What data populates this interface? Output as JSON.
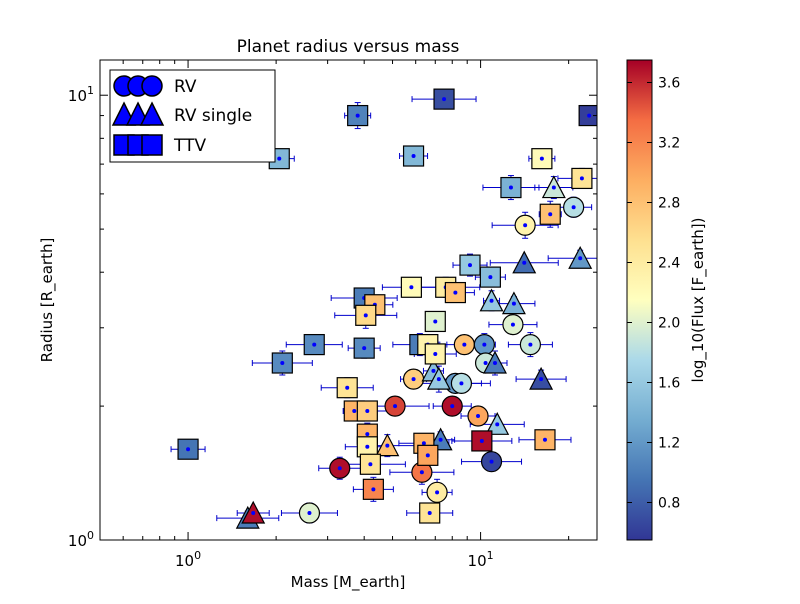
{
  "chart_data": {
    "type": "scatter",
    "title": "Planet radius versus mass",
    "xlabel": "Mass [M_earth]",
    "ylabel": "Radius [R_earth]",
    "x_scale": "log",
    "y_scale": "log",
    "xlim": [
      0.5,
      25
    ],
    "ylim": [
      1,
      12
    ],
    "x_ticks": [
      {
        "value": 1,
        "label": "10^0"
      },
      {
        "value": 10,
        "label": "10^1"
      }
    ],
    "y_ticks": [
      {
        "value": 1,
        "label": "10^0"
      },
      {
        "value": 10,
        "label": "10^1"
      }
    ],
    "colorbar": {
      "label": "log_10(Flux [F_earth])",
      "range": [
        0.55,
        3.75
      ],
      "ticks": [
        0.8,
        1.2,
        1.6,
        2.0,
        2.4,
        2.8,
        3.2,
        3.6
      ],
      "tick_labels": [
        "0.8",
        "1.2",
        "1.6",
        "2.0",
        "2.4",
        "2.8",
        "3.2",
        "3.6"
      ]
    },
    "legend": {
      "placement": "top-left",
      "entries": [
        {
          "label": "RV",
          "marker": "circle"
        },
        {
          "label": "RV single",
          "marker": "triangle"
        },
        {
          "label": "TTV",
          "marker": "square"
        }
      ]
    },
    "series": [
      {
        "name": "RV",
        "marker": "circle",
        "points": [
          {
            "x": 3.3,
            "y": 1.45,
            "flux": 3.7
          },
          {
            "x": 5.1,
            "y": 2.0,
            "flux": 3.5
          },
          {
            "x": 8.0,
            "y": 2.0,
            "flux": 3.7
          },
          {
            "x": 6.3,
            "y": 1.42,
            "flux": 3.3
          },
          {
            "x": 9.8,
            "y": 1.9,
            "flux": 3.0
          },
          {
            "x": 10.9,
            "y": 1.5,
            "flux": 0.65
          },
          {
            "x": 7.1,
            "y": 1.28,
            "flux": 2.4
          },
          {
            "x": 2.6,
            "y": 1.15,
            "flux": 2.0
          },
          {
            "x": 5.9,
            "y": 2.3,
            "flux": 2.7
          },
          {
            "x": 8.8,
            "y": 2.75,
            "flux": 2.8
          },
          {
            "x": 10.3,
            "y": 2.75,
            "flux": 1.2
          },
          {
            "x": 12.9,
            "y": 3.05,
            "flux": 2.0
          },
          {
            "x": 10.4,
            "y": 2.5,
            "flux": 1.9
          },
          {
            "x": 14.8,
            "y": 2.75,
            "flux": 1.9
          },
          {
            "x": 8.2,
            "y": 2.25,
            "flux": 1.2
          },
          {
            "x": 8.6,
            "y": 2.25,
            "flux": 1.8
          },
          {
            "x": 14.2,
            "y": 5.1,
            "flux": 2.3
          },
          {
            "x": 20.8,
            "y": 5.6,
            "flux": 1.8
          }
        ]
      },
      {
        "name": "RV single",
        "marker": "triangle",
        "points": [
          {
            "x": 1.6,
            "y": 1.12,
            "flux": 1.0
          },
          {
            "x": 1.67,
            "y": 1.15,
            "flux": 3.7
          },
          {
            "x": 4.8,
            "y": 1.63,
            "flux": 2.8
          },
          {
            "x": 7.3,
            "y": 1.68,
            "flux": 1.0
          },
          {
            "x": 11.4,
            "y": 1.82,
            "flux": 1.6
          },
          {
            "x": 11.2,
            "y": 2.5,
            "flux": 1.0
          },
          {
            "x": 16.1,
            "y": 2.3,
            "flux": 0.7
          },
          {
            "x": 6.9,
            "y": 2.4,
            "flux": 1.5
          },
          {
            "x": 7.2,
            "y": 2.3,
            "flux": 1.6
          },
          {
            "x": 10.9,
            "y": 3.45,
            "flux": 1.6
          },
          {
            "x": 13.0,
            "y": 3.4,
            "flux": 1.4
          },
          {
            "x": 14.1,
            "y": 4.2,
            "flux": 0.9
          },
          {
            "x": 17.8,
            "y": 6.2,
            "flux": 1.9
          },
          {
            "x": 21.9,
            "y": 4.3,
            "flux": 1.2
          }
        ]
      },
      {
        "name": "TTV",
        "marker": "square",
        "points": [
          {
            "x": 1.0,
            "y": 1.6,
            "flux": 0.95
          },
          {
            "x": 2.1,
            "y": 2.5,
            "flux": 1.1
          },
          {
            "x": 2.05,
            "y": 7.2,
            "flux": 1.45
          },
          {
            "x": 2.7,
            "y": 2.75,
            "flux": 1.1
          },
          {
            "x": 3.8,
            "y": 9.0,
            "flux": 1.05
          },
          {
            "x": 3.5,
            "y": 2.2,
            "flux": 2.5
          },
          {
            "x": 3.7,
            "y": 1.95,
            "flux": 2.9
          },
          {
            "x": 4.1,
            "y": 1.95,
            "flux": 2.7
          },
          {
            "x": 4.1,
            "y": 1.73,
            "flux": 2.9
          },
          {
            "x": 4.1,
            "y": 1.62,
            "flux": 2.3
          },
          {
            "x": 4.2,
            "y": 1.48,
            "flux": 2.5
          },
          {
            "x": 4.3,
            "y": 1.3,
            "flux": 3.2
          },
          {
            "x": 4.0,
            "y": 3.5,
            "flux": 1.0
          },
          {
            "x": 4.35,
            "y": 3.38,
            "flux": 2.8
          },
          {
            "x": 4.05,
            "y": 3.2,
            "flux": 2.6
          },
          {
            "x": 4.0,
            "y": 2.7,
            "flux": 1.1
          },
          {
            "x": 5.8,
            "y": 3.7,
            "flux": 2.2
          },
          {
            "x": 5.9,
            "y": 7.3,
            "flux": 1.45
          },
          {
            "x": 6.2,
            "y": 2.75,
            "flux": 1.0
          },
          {
            "x": 6.6,
            "y": 2.75,
            "flux": 2.3
          },
          {
            "x": 6.4,
            "y": 1.65,
            "flux": 2.9
          },
          {
            "x": 6.6,
            "y": 1.55,
            "flux": 3.0
          },
          {
            "x": 6.7,
            "y": 1.15,
            "flux": 2.5
          },
          {
            "x": 7.0,
            "y": 3.1,
            "flux": 2.0
          },
          {
            "x": 7.0,
            "y": 2.62,
            "flux": 2.3
          },
          {
            "x": 7.6,
            "y": 3.7,
            "flux": 2.4
          },
          {
            "x": 8.2,
            "y": 3.6,
            "flux": 2.8
          },
          {
            "x": 7.5,
            "y": 9.8,
            "flux": 0.7
          },
          {
            "x": 9.2,
            "y": 4.15,
            "flux": 1.6
          },
          {
            "x": 10.1,
            "y": 1.67,
            "flux": 3.7
          },
          {
            "x": 10.8,
            "y": 3.9,
            "flux": 1.5
          },
          {
            "x": 12.7,
            "y": 6.2,
            "flux": 1.4
          },
          {
            "x": 16.2,
            "y": 7.2,
            "flux": 2.2
          },
          {
            "x": 16.6,
            "y": 1.68,
            "flux": 2.9
          },
          {
            "x": 17.3,
            "y": 5.4,
            "flux": 2.8
          },
          {
            "x": 22.2,
            "y": 6.5,
            "flux": 2.5
          },
          {
            "x": 23.5,
            "y": 9.0,
            "flux": 0.6
          }
        ]
      }
    ]
  }
}
